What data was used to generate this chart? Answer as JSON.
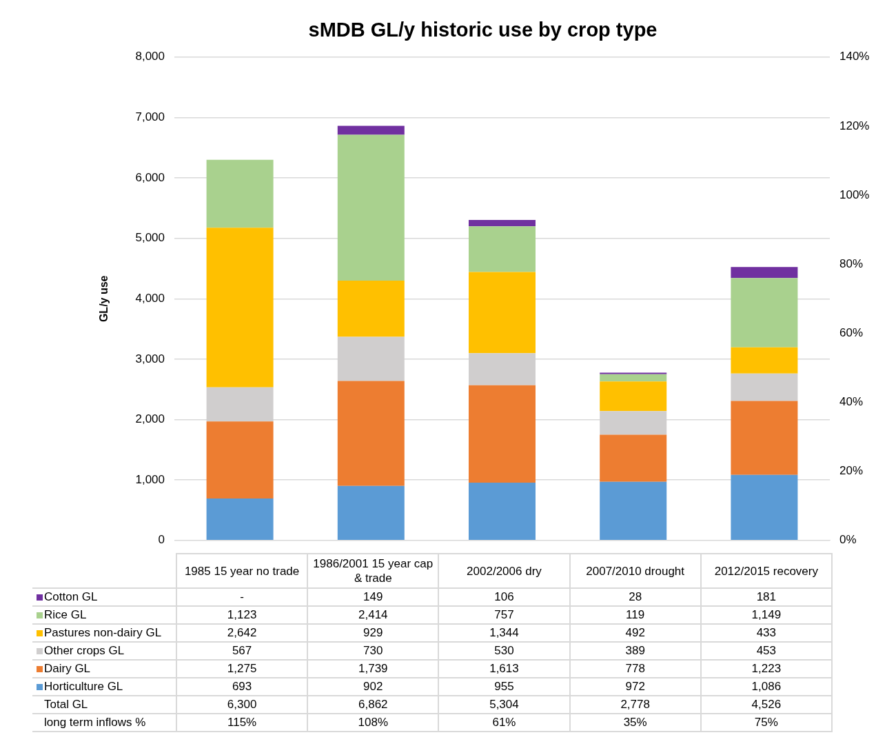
{
  "chart_data": {
    "type": "bar",
    "stacked": true,
    "title": "sMDB GL/y historic use by crop type",
    "ylabel": "GL/y use",
    "categories": [
      "1985 15 year no trade",
      "1986/2001 15 year cap & trade",
      "2002/2006 dry",
      "2007/2010 drought",
      "2012/2015 recovery"
    ],
    "series": [
      {
        "name": "Horticulture GL",
        "color": "#5b9bd5",
        "values": [
          693,
          902,
          955,
          972,
          1086
        ],
        "value_labels": [
          "693",
          "902",
          "955",
          "972",
          "1,086"
        ]
      },
      {
        "name": "Dairy GL",
        "color": "#ed7d31",
        "values": [
          1275,
          1739,
          1613,
          778,
          1223
        ],
        "value_labels": [
          "1,275",
          "1,739",
          "1,613",
          "778",
          "1,223"
        ]
      },
      {
        "name": "Other crops GL",
        "color": "#d0cece",
        "values": [
          567,
          730,
          530,
          389,
          453
        ],
        "value_labels": [
          "567",
          "730",
          "530",
          "389",
          "453"
        ]
      },
      {
        "name": "Pastures non-dairy  GL",
        "color": "#ffc000",
        "values": [
          2642,
          929,
          1344,
          492,
          433
        ],
        "value_labels": [
          "2,642",
          "929",
          "1,344",
          "492",
          "433"
        ]
      },
      {
        "name": "Rice GL",
        "color": "#a9d18e",
        "values": [
          1123,
          2414,
          757,
          119,
          1149
        ],
        "value_labels": [
          "1,123",
          "2,414",
          "757",
          "119",
          "1,149"
        ]
      },
      {
        "name": "Cotton GL",
        "color": "#7030a0",
        "values": [
          null,
          149,
          106,
          28,
          181
        ],
        "value_labels": [
          "-",
          "149",
          "106",
          "28",
          "181"
        ]
      }
    ],
    "ylim": [
      0,
      8000
    ],
    "yticks": [
      {
        "value": 0,
        "label": "0"
      },
      {
        "value": 1000,
        "label": "1,000"
      },
      {
        "value": 2000,
        "label": "2,000"
      },
      {
        "value": 3000,
        "label": "3,000"
      },
      {
        "value": 4000,
        "label": "4,000"
      },
      {
        "value": 5000,
        "label": "5,000"
      },
      {
        "value": 6000,
        "label": "6,000"
      },
      {
        "value": 7000,
        "label": "7,000"
      },
      {
        "value": 8000,
        "label": "8,000"
      }
    ],
    "y2lim": [
      0,
      140
    ],
    "y2ticks": [
      {
        "value": 0,
        "label": "0%"
      },
      {
        "value": 20,
        "label": "20%"
      },
      {
        "value": 40,
        "label": "40%"
      },
      {
        "value": 60,
        "label": "60%"
      },
      {
        "value": 80,
        "label": "80%"
      },
      {
        "value": 100,
        "label": "100%"
      },
      {
        "value": 120,
        "label": "120%"
      },
      {
        "value": 140,
        "label": "140%"
      }
    ],
    "grid": "y",
    "legend": "bottom",
    "annotations": [
      "Total GL",
      "6,300",
      "6,862",
      "5,304",
      "2,778",
      "4,526",
      "long term inflows %",
      "115%",
      "108%",
      "61%",
      "35%",
      "75%"
    ]
  }
}
